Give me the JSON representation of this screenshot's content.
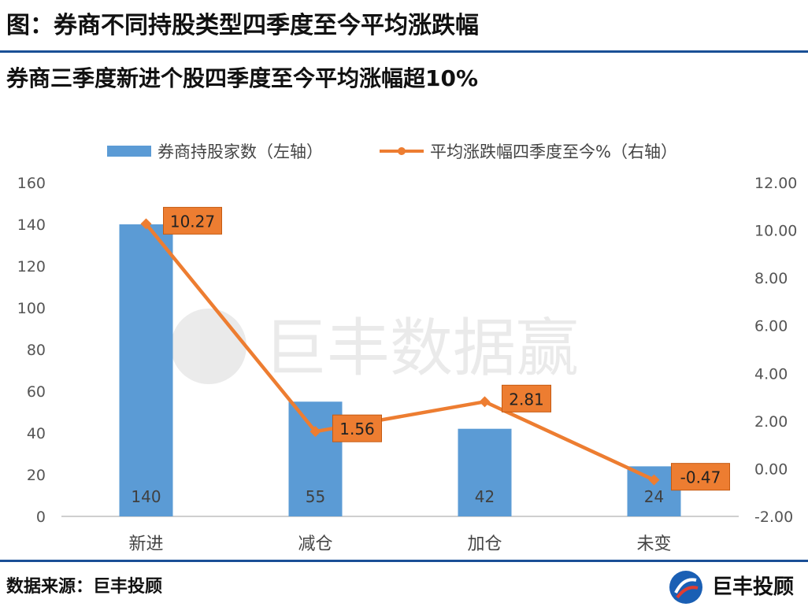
{
  "header": {
    "title": "图：券商不同持股类型四季度至今平均涨跌幅"
  },
  "subheader": {
    "title": "券商三季度新进个股四季度至今平均涨幅超10%"
  },
  "watermark": {
    "text": "巨丰数据赢"
  },
  "footer": {
    "source": "数据来源：巨丰投顾",
    "brand": "巨丰投顾"
  },
  "colors": {
    "bar": "#5b9bd5",
    "line": "#ed7d31",
    "rule": "#1a4f96",
    "label_box": "#ed7d31"
  },
  "chart_data": {
    "type": "bar",
    "categories": [
      "新进",
      "减仓",
      "加仓",
      "未变"
    ],
    "legend": {
      "placement": "top-center"
    },
    "grid": false,
    "y_left": {
      "min": 0,
      "max": 160,
      "ticks": [
        "0",
        "20",
        "40",
        "60",
        "80",
        "100",
        "120",
        "140",
        "160"
      ]
    },
    "y_right": {
      "min": -2,
      "max": 12,
      "ticks": [
        "-2.00",
        "0.00",
        "2.00",
        "4.00",
        "6.00",
        "8.00",
        "10.00",
        "12.00"
      ]
    },
    "series": [
      {
        "name": "券商持股家数（左轴）",
        "type": "bar",
        "axis": "left",
        "values": [
          140,
          55,
          42,
          24
        ],
        "labels": [
          "140",
          "55",
          "42",
          "24"
        ]
      },
      {
        "name": "平均涨跌幅四季度至今%（右轴）",
        "type": "line",
        "axis": "right",
        "values": [
          10.27,
          1.56,
          2.81,
          -0.47
        ],
        "labels": [
          "10.27",
          "1.56",
          "2.81",
          "-0.47"
        ]
      }
    ]
  }
}
